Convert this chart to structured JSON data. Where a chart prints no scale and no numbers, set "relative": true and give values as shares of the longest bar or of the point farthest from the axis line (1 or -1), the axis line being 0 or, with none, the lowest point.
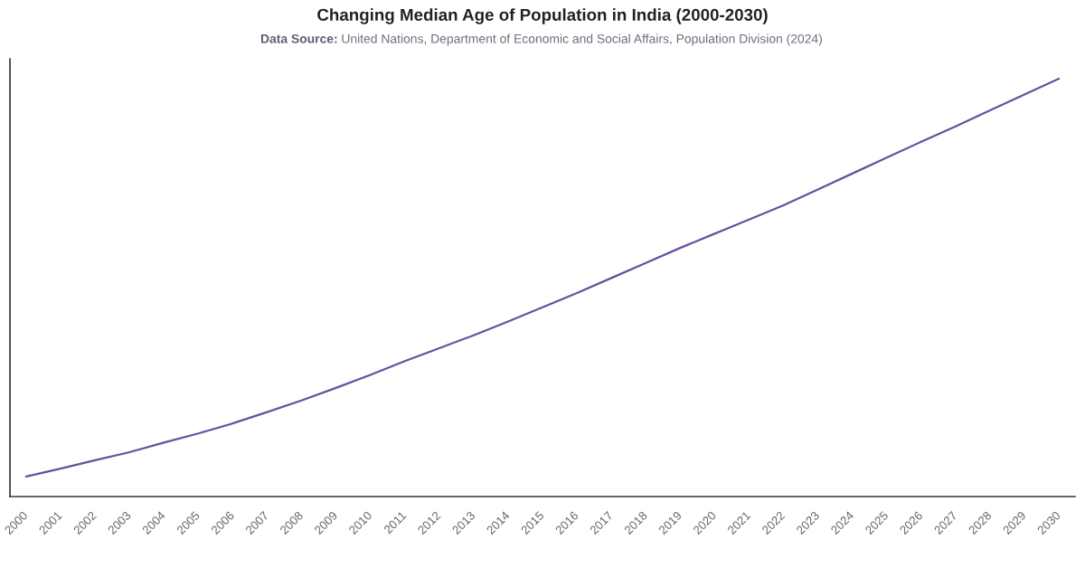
{
  "chart_data": {
    "type": "line",
    "title": "Changing Median Age of Population in India (2000-2030)",
    "subtitle": "Data Source: United Nations, Department of Economic and Social Affairs, Population Division (2024)",
    "categories": [
      "2000",
      "2001",
      "2002",
      "2003",
      "2004",
      "2005",
      "2006",
      "2007",
      "2008",
      "2009",
      "2010",
      "2011",
      "2012",
      "2013",
      "2014",
      "2015",
      "2016",
      "2017",
      "2018",
      "2019",
      "2020",
      "2021",
      "2022",
      "2023",
      "2024",
      "2025",
      "2026",
      "2027",
      "2028",
      "2029",
      "2030"
    ],
    "series": [
      {
        "color": "#6b4f9e",
        "values": [
          0.048,
          0.067,
          0.087,
          0.106,
          0.129,
          0.151,
          0.175,
          0.202,
          0.23,
          0.26,
          0.291,
          0.324,
          0.355,
          0.386,
          0.419,
          0.453,
          0.487,
          0.523,
          0.559,
          0.595,
          0.629,
          0.663,
          0.697,
          0.735,
          0.773,
          0.811,
          0.849,
          0.886,
          0.924,
          0.962,
          1.0
        ]
      }
    ],
    "relative": true,
    "tick_labels": "x",
    "marker": "none",
    "line_style": "solid"
  }
}
